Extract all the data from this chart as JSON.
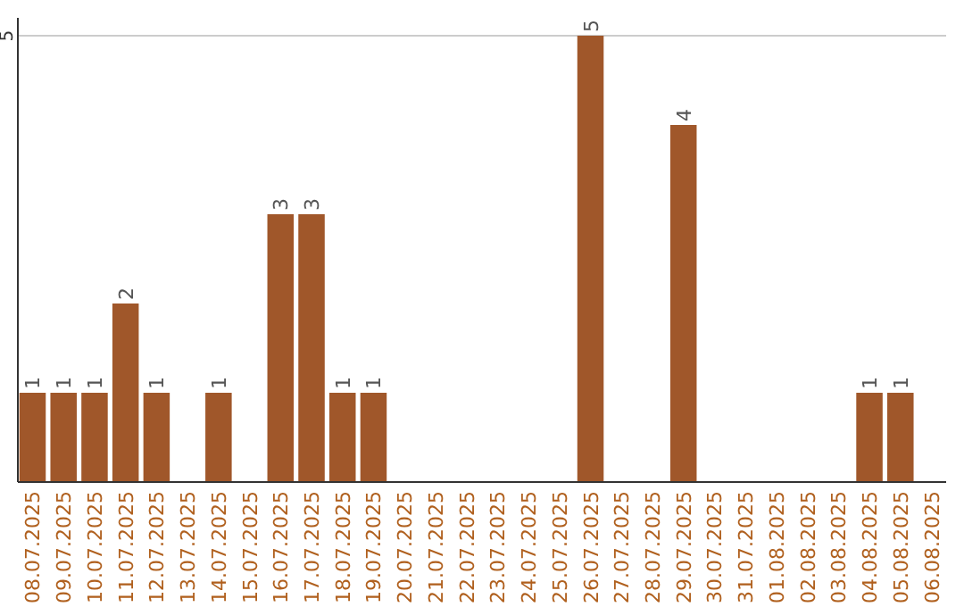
{
  "chart_data": {
    "type": "bar",
    "categories": [
      "08.07.2025",
      "09.07.2025",
      "10.07.2025",
      "11.07.2025",
      "12.07.2025",
      "13.07.2025",
      "14.07.2025",
      "15.07.2025",
      "16.07.2025",
      "17.07.2025",
      "18.07.2025",
      "19.07.2025",
      "20.07.2025",
      "21.07.2025",
      "22.07.2025",
      "23.07.2025",
      "24.07.2025",
      "25.07.2025",
      "26.07.2025",
      "27.07.2025",
      "28.07.2025",
      "29.07.2025",
      "30.07.2025",
      "31.07.2025",
      "01.08.2025",
      "02.08.2025",
      "03.08.2025",
      "04.08.2025",
      "05.08.2025",
      "06.08.2025"
    ],
    "values": [
      1,
      1,
      1,
      2,
      1,
      0,
      1,
      0,
      3,
      3,
      1,
      1,
      0,
      0,
      0,
      0,
      0,
      0,
      5,
      0,
      0,
      4,
      0,
      0,
      0,
      0,
      0,
      1,
      1,
      0
    ],
    "value_labels": [
      "1",
      "1",
      "1",
      "2",
      "1",
      null,
      "1",
      null,
      "3",
      "3",
      "1",
      "1",
      null,
      null,
      null,
      null,
      null,
      null,
      "5",
      null,
      null,
      "4",
      null,
      null,
      null,
      null,
      null,
      "1",
      "1",
      null
    ],
    "color": "#a0572a",
    "ylim": [
      0,
      5.2
    ],
    "yticks": [
      5
    ],
    "grid": "y"
  }
}
